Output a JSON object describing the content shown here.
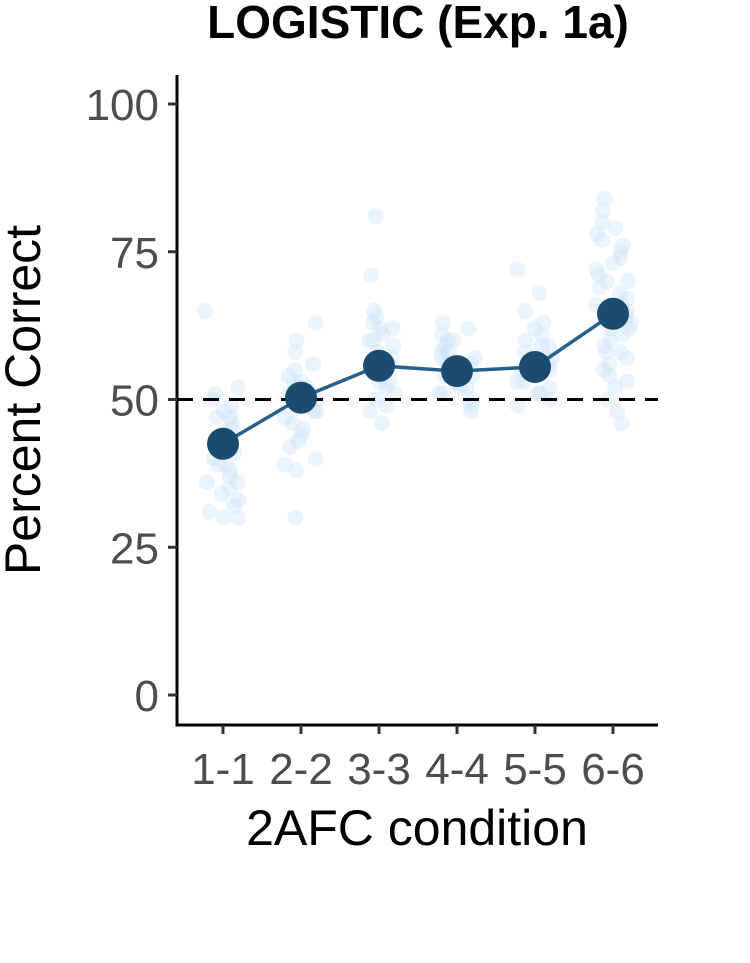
{
  "chart_data": {
    "type": "line",
    "title": "LOGISTIC (Exp. 1a)",
    "xlabel": "2AFC condition",
    "ylabel": "Percent Correct",
    "categories": [
      "1-1",
      "2-2",
      "3-3",
      "4-4",
      "5-5",
      "6-6"
    ],
    "ylim": [
      0,
      100
    ],
    "yticks": [
      0,
      25,
      50,
      75,
      100
    ],
    "chance_line": 50,
    "grid": false,
    "legend": "none",
    "series": [
      {
        "values": [
          42.5,
          50.3,
          55.7,
          54.8,
          55.5,
          64.5
        ]
      }
    ],
    "individual_points": [
      [
        65,
        52,
        51,
        50,
        49,
        48,
        47,
        46,
        45,
        44,
        43,
        42,
        41,
        40,
        39,
        38,
        37,
        36,
        35,
        34,
        33,
        32,
        31,
        30,
        30,
        47,
        43,
        39,
        36
      ],
      [
        63,
        60,
        58,
        56,
        55,
        54,
        53,
        52,
        51,
        50,
        50,
        49,
        48,
        47,
        46,
        45,
        44,
        43,
        42,
        40,
        39,
        38,
        30,
        52,
        48,
        53,
        51
      ],
      [
        81,
        71,
        65,
        64,
        63,
        62,
        61,
        60,
        59,
        58,
        57,
        56,
        55,
        54,
        53,
        52,
        51,
        50,
        49,
        48,
        46,
        60,
        55,
        57,
        53,
        62
      ],
      [
        63,
        62,
        61,
        60,
        59,
        58,
        57,
        56,
        55,
        54,
        53,
        52,
        51,
        50,
        49,
        48,
        56,
        54,
        52,
        58,
        51,
        60,
        57
      ],
      [
        72,
        68,
        65,
        63,
        62,
        61,
        60,
        59,
        58,
        57,
        56,
        55,
        54,
        53,
        52,
        51,
        50,
        49,
        55,
        53,
        57,
        51,
        59
      ],
      [
        84,
        82,
        80,
        79,
        78,
        76,
        75,
        74,
        73,
        72,
        71,
        70,
        69,
        68,
        67,
        66,
        65,
        64,
        63,
        62,
        61,
        60,
        59,
        58,
        57,
        56,
        55,
        54,
        53,
        52,
        50,
        48,
        46,
        70,
        66,
        62,
        77,
        58
      ]
    ],
    "colors": {
      "line": "#27618b",
      "point": "#1b4b70",
      "jitter": "#c6dff5"
    }
  }
}
